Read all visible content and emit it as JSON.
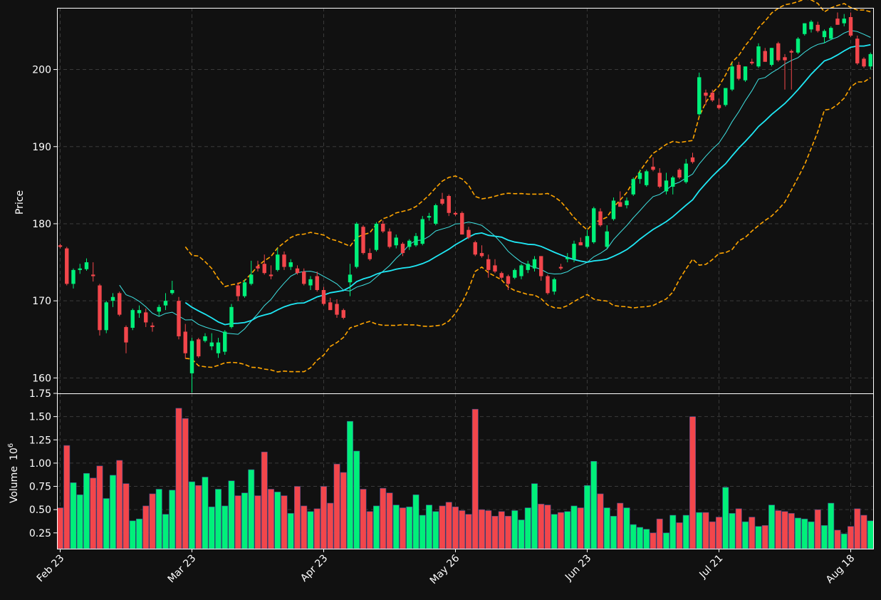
{
  "colors": {
    "background": "#111111",
    "up": "#00f07a",
    "down": "#f2464b",
    "bollinger": "#ffa500",
    "ma_fast": "#3fe3e3",
    "ma_slow": "#1fe8f5",
    "grid": "#3a3a3a",
    "axes": "#ffffff"
  },
  "chart_data": {
    "type": "candlestick",
    "ylabel_price": "Price",
    "ylabel_volume": "Volume",
    "volume_multiplier": "10",
    "volume_exponent": "6",
    "price_ylim": [
      158,
      208
    ],
    "price_yticks": [
      "160",
      "170",
      "180",
      "190",
      "200"
    ],
    "volume_ylim": [
      0.08,
      1.75
    ],
    "volume_yticks": [
      "0.25",
      "0.50",
      "0.75",
      "1.00",
      "1.25",
      "1.50",
      "1.75"
    ],
    "grid": true,
    "x_ticks": [
      {
        "label": "Feb 23",
        "index": 0
      },
      {
        "label": "Mar 23",
        "index": 20
      },
      {
        "label": "Apr 23",
        "index": 40
      },
      {
        "label": "May 26",
        "index": 60
      },
      {
        "label": "Jun 23",
        "index": 80
      },
      {
        "label": "Jul 21",
        "index": 100
      },
      {
        "label": "Aug 18",
        "index": 120
      }
    ],
    "candles": [
      [
        177.2,
        177.4,
        176.8,
        177.0
      ],
      [
        176.8,
        177.0,
        172.0,
        172.2
      ],
      [
        172.2,
        174.2,
        171.6,
        174.0
      ],
      [
        174.0,
        174.8,
        173.5,
        174.2
      ],
      [
        174.1,
        175.5,
        173.9,
        175.0
      ],
      [
        173.4,
        175.0,
        172.5,
        173.2
      ],
      [
        172.0,
        172.2,
        165.5,
        166.2
      ],
      [
        166.2,
        170.0,
        165.8,
        169.8
      ],
      [
        170.0,
        171.0,
        169.2,
        170.5
      ],
      [
        171.0,
        171.2,
        168.0,
        168.2
      ],
      [
        166.6,
        166.8,
        163.2,
        164.6
      ],
      [
        166.5,
        169.0,
        166.2,
        168.8
      ],
      [
        168.4,
        169.4,
        167.8,
        168.8
      ],
      [
        168.5,
        169.0,
        166.6,
        167.2
      ],
      [
        166.8,
        167.2,
        166.0,
        166.6
      ],
      [
        168.6,
        169.5,
        168.0,
        169.2
      ],
      [
        169.4,
        171.0,
        168.8,
        170.0
      ],
      [
        171.0,
        172.6,
        170.8,
        171.4
      ],
      [
        170.0,
        170.5,
        165.0,
        165.4
      ],
      [
        166.0,
        167.0,
        162.5,
        163.2
      ],
      [
        160.6,
        165.2,
        157.8,
        164.8
      ],
      [
        165.0,
        165.2,
        162.6,
        162.8
      ],
      [
        164.8,
        165.8,
        164.6,
        165.4
      ],
      [
        164.1,
        165.8,
        163.6,
        164.6
      ],
      [
        163.2,
        165.2,
        162.6,
        164.6
      ],
      [
        163.4,
        166.2,
        163.0,
        166.0
      ],
      [
        166.6,
        169.6,
        166.4,
        169.2
      ],
      [
        172.0,
        172.4,
        170.0,
        170.6
      ],
      [
        170.6,
        172.8,
        170.4,
        172.4
      ],
      [
        172.2,
        175.2,
        172.0,
        173.4
      ],
      [
        174.5,
        175.2,
        173.8,
        174.2
      ],
      [
        174.8,
        176.0,
        173.4,
        173.6
      ],
      [
        173.4,
        174.6,
        172.8,
        173.2
      ],
      [
        174.0,
        176.8,
        173.8,
        176.0
      ],
      [
        176.0,
        176.4,
        174.0,
        174.4
      ],
      [
        174.4,
        175.4,
        174.0,
        175.0
      ],
      [
        174.2,
        174.6,
        173.4,
        173.6
      ],
      [
        173.8,
        174.2,
        172.0,
        172.2
      ],
      [
        172.0,
        173.2,
        171.4,
        172.8
      ],
      [
        173.2,
        173.8,
        171.2,
        171.4
      ],
      [
        171.4,
        171.8,
        169.4,
        169.6
      ],
      [
        169.8,
        170.4,
        168.8,
        168.8
      ],
      [
        169.6,
        170.2,
        167.8,
        168.2
      ],
      [
        168.8,
        169.0,
        167.6,
        167.8
      ],
      [
        172.4,
        174.8,
        170.6,
        173.4
      ],
      [
        174.4,
        180.2,
        174.2,
        180.0
      ],
      [
        179.6,
        179.8,
        176.0,
        176.2
      ],
      [
        176.2,
        176.8,
        175.2,
        175.4
      ],
      [
        176.6,
        180.2,
        176.4,
        180.0
      ],
      [
        180.0,
        180.4,
        178.8,
        179.0
      ],
      [
        179.0,
        179.4,
        176.8,
        177.0
      ],
      [
        177.2,
        178.6,
        176.8,
        178.2
      ],
      [
        177.4,
        177.6,
        175.8,
        176.2
      ],
      [
        177.0,
        178.0,
        176.6,
        177.8
      ],
      [
        177.2,
        178.8,
        177.0,
        178.4
      ],
      [
        177.4,
        181.0,
        177.2,
        180.6
      ],
      [
        180.8,
        181.4,
        180.4,
        181.0
      ],
      [
        180.0,
        182.6,
        179.8,
        182.4
      ],
      [
        183.2,
        184.0,
        182.4,
        182.6
      ],
      [
        183.6,
        183.8,
        181.0,
        181.4
      ],
      [
        181.4,
        181.6,
        181.0,
        181.2
      ],
      [
        181.4,
        181.6,
        178.6,
        178.6
      ],
      [
        179.2,
        179.6,
        178.0,
        178.2
      ],
      [
        177.6,
        177.8,
        175.8,
        176.0
      ],
      [
        176.2,
        177.2,
        175.6,
        175.8
      ],
      [
        175.4,
        176.0,
        173.0,
        174.0
      ],
      [
        174.6,
        175.4,
        173.6,
        173.8
      ],
      [
        173.6,
        173.8,
        172.8,
        173.0
      ],
      [
        173.2,
        173.4,
        171.4,
        172.2
      ],
      [
        173.0,
        174.2,
        172.8,
        174.0
      ],
      [
        173.2,
        174.8,
        172.8,
        174.6
      ],
      [
        174.0,
        175.2,
        173.6,
        174.8
      ],
      [
        174.2,
        175.8,
        173.8,
        175.4
      ],
      [
        175.8,
        175.8,
        172.6,
        173.2
      ],
      [
        173.2,
        173.4,
        170.8,
        171.0
      ],
      [
        171.2,
        173.0,
        170.8,
        172.8
      ],
      [
        174.4,
        174.8,
        174.0,
        174.2
      ],
      [
        175.4,
        176.2,
        175.0,
        175.6
      ],
      [
        175.4,
        177.8,
        175.0,
        177.4
      ],
      [
        177.6,
        178.2,
        177.2,
        177.2
      ],
      [
        177.0,
        179.2,
        176.8,
        178.4
      ],
      [
        177.6,
        182.2,
        177.4,
        182.0
      ],
      [
        181.6,
        182.0,
        179.6,
        179.8
      ],
      [
        177.0,
        179.8,
        176.8,
        179.0
      ],
      [
        180.6,
        183.4,
        180.4,
        183.0
      ],
      [
        182.8,
        184.2,
        182.2,
        182.2
      ],
      [
        182.4,
        183.4,
        182.0,
        183.0
      ],
      [
        183.8,
        186.0,
        183.6,
        185.8
      ],
      [
        185.8,
        187.0,
        185.2,
        186.6
      ],
      [
        185.0,
        187.0,
        184.8,
        186.8
      ],
      [
        187.4,
        188.6,
        186.8,
        187.0
      ],
      [
        186.6,
        187.2,
        184.6,
        184.8
      ],
      [
        184.2,
        186.6,
        183.8,
        185.6
      ],
      [
        184.8,
        186.2,
        183.8,
        186.0
      ],
      [
        187.0,
        187.2,
        185.8,
        186.0
      ],
      [
        185.4,
        188.4,
        185.2,
        187.8
      ],
      [
        188.6,
        189.2,
        187.8,
        188.0
      ],
      [
        194.2,
        199.6,
        194.0,
        199.0
      ],
      [
        197.0,
        197.4,
        195.4,
        196.6
      ],
      [
        197.0,
        197.4,
        195.8,
        196.0
      ],
      [
        195.4,
        196.2,
        194.8,
        195.0
      ],
      [
        195.4,
        197.6,
        195.2,
        197.6
      ],
      [
        197.4,
        200.8,
        197.2,
        200.4
      ],
      [
        200.6,
        201.0,
        198.6,
        198.8
      ],
      [
        198.6,
        200.4,
        198.4,
        200.4
      ],
      [
        201.0,
        201.4,
        200.6,
        200.8
      ],
      [
        200.4,
        203.4,
        200.2,
        203.0
      ],
      [
        202.4,
        202.8,
        201.0,
        201.0
      ],
      [
        200.6,
        202.8,
        200.4,
        202.8
      ],
      [
        203.4,
        203.6,
        201.0,
        201.2
      ],
      [
        201.6,
        202.0,
        197.4,
        201.2
      ],
      [
        202.4,
        202.6,
        197.4,
        202.2
      ],
      [
        202.2,
        204.2,
        202.0,
        204.0
      ],
      [
        204.6,
        206.0,
        204.4,
        206.0
      ],
      [
        205.2,
        206.4,
        204.8,
        206.2
      ],
      [
        205.8,
        206.2,
        204.8,
        205.0
      ],
      [
        204.2,
        205.2,
        203.4,
        205.0
      ],
      [
        204.0,
        205.6,
        203.8,
        205.4
      ],
      [
        206.6,
        207.4,
        205.8,
        205.8
      ],
      [
        206.0,
        207.2,
        205.6,
        206.6
      ],
      [
        206.8,
        207.4,
        204.2,
        204.4
      ],
      [
        204.0,
        204.4,
        200.6,
        200.8
      ],
      [
        201.4,
        201.6,
        200.2,
        200.4
      ],
      [
        200.4,
        202.2,
        200.0,
        202.0
      ]
    ],
    "volume": [
      0.52,
      1.19,
      0.79,
      0.66,
      0.89,
      0.84,
      0.97,
      0.62,
      0.87,
      1.03,
      0.78,
      0.38,
      0.4,
      0.54,
      0.67,
      0.72,
      0.45,
      0.71,
      1.59,
      1.48,
      0.8,
      0.76,
      0.85,
      0.53,
      0.72,
      0.54,
      0.81,
      0.65,
      0.68,
      0.93,
      0.65,
      1.12,
      0.72,
      0.69,
      0.65,
      0.46,
      0.75,
      0.54,
      0.48,
      0.51,
      0.75,
      0.57,
      0.99,
      0.9,
      1.45,
      1.13,
      0.72,
      0.48,
      0.54,
      0.73,
      0.68,
      0.55,
      0.52,
      0.53,
      0.66,
      0.44,
      0.55,
      0.48,
      0.54,
      0.58,
      0.53,
      0.49,
      0.45,
      1.58,
      0.5,
      0.49,
      0.43,
      0.48,
      0.43,
      0.49,
      0.39,
      0.52,
      0.78,
      0.56,
      0.55,
      0.45,
      0.47,
      0.48,
      0.54,
      0.52,
      0.76,
      1.02,
      0.67,
      0.52,
      0.43,
      0.57,
      0.52,
      0.34,
      0.31,
      0.29,
      0.25,
      0.4,
      0.25,
      0.44,
      0.36,
      0.44,
      1.5,
      0.47,
      0.47,
      0.37,
      0.42,
      0.74,
      0.46,
      0.51,
      0.37,
      0.42,
      0.32,
      0.33,
      0.55,
      0.49,
      0.48,
      0.46,
      0.41,
      0.4,
      0.37,
      0.5,
      0.33,
      0.57,
      0.28,
      0.24,
      0.32,
      0.51,
      0.44,
      0.38
    ]
  }
}
